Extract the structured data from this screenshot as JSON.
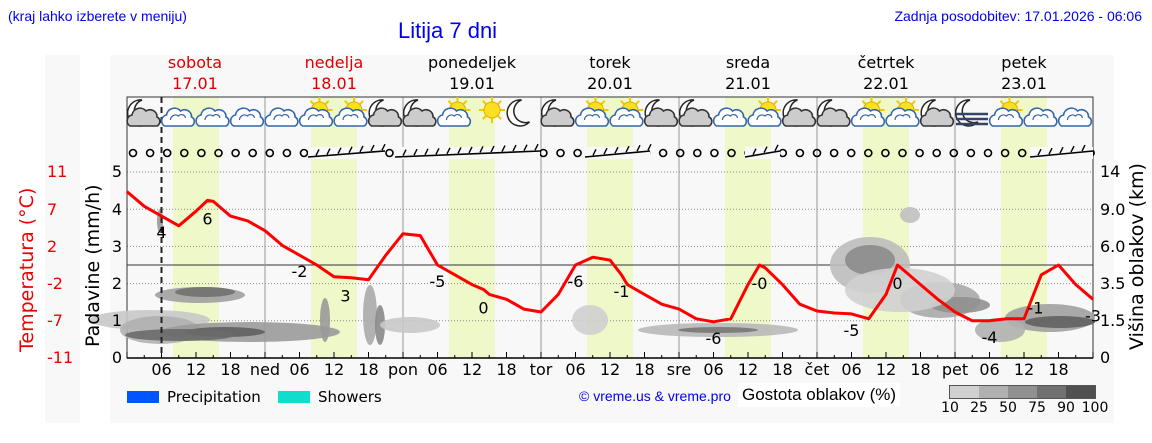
{
  "header": {
    "hint": "(kraj lahko izberete v meniju)",
    "title": "Litija 7 dni",
    "updated": "Zadnja posodobitev: 17.01.2026 - 06:06"
  },
  "days": [
    {
      "name": "sobota",
      "date": "17.01",
      "color": "#dd0000"
    },
    {
      "name": "nedelja",
      "date": "18.01",
      "color": "#dd0000"
    },
    {
      "name": "ponedeljek",
      "date": "19.01",
      "color": "#000000"
    },
    {
      "name": "torek",
      "date": "20.01",
      "color": "#000000"
    },
    {
      "name": "sreda",
      "date": "21.01",
      "color": "#000000"
    },
    {
      "name": "četrtek",
      "date": "22.01",
      "color": "#000000"
    },
    {
      "name": "petek",
      "date": "23.01",
      "color": "#000000"
    }
  ],
  "axes": {
    "temp_label": "Temperatura (°C)",
    "precip_label": "Padavine (mm/h)",
    "cloud_height_label": "Višina oblakov (km)",
    "temp_ticks": [
      "11",
      "7",
      "2",
      "-2",
      "-7",
      "-11"
    ],
    "precip_ticks": [
      "5",
      "4",
      "3",
      "2",
      "1",
      "0"
    ],
    "cloud_ticks": [
      "14",
      "9.0",
      "6.0",
      "3.5",
      "1.5",
      "0"
    ]
  },
  "x_labels": [
    "06",
    "12",
    "18",
    "ned",
    "06",
    "12",
    "18",
    "pon",
    "06",
    "12",
    "18",
    "tor",
    "06",
    "12",
    "18",
    "sre",
    "06",
    "12",
    "18",
    "čet",
    "06",
    "12",
    "18",
    "pet",
    "06",
    "12",
    "18"
  ],
  "legend": {
    "precipitation": "Precipitation",
    "showers": "Showers",
    "precip_color": "#0055ff",
    "showers_color": "#11ddcc",
    "copyright": "© vreme.us & vreme.pro",
    "cloud_density_label": "Gostota oblakov (%)",
    "cloud_density_ticks": [
      "10",
      "25",
      "50",
      "75",
      "90",
      "100"
    ],
    "cloud_density_colors": [
      "#d0d0d0",
      "#b0b0b0",
      "#909090",
      "#707070",
      "#505050"
    ]
  },
  "weather_icons": [
    "moon-cloud",
    "cloud",
    "cloud",
    "cloud",
    "cloud",
    "sun-cloud",
    "sun-cloud",
    "moon-cloud",
    "moon-cloud",
    "sun-cloud",
    "sun",
    "moon",
    "moon-cloud",
    "sun-cloud",
    "sun-cloud",
    "moon-cloud",
    "moon-cloud",
    "cloud",
    "sun-cloud",
    "moon-cloud",
    "moon-cloud",
    "sun-cloud",
    "sun-cloud",
    "moon-cloud",
    "moon-fog",
    "sun-cloud",
    "cloud",
    "cloud"
  ],
  "chart_data": {
    "type": "line",
    "title": "Litija 7 dni",
    "xlabel": "",
    "ylabel": "Temperatura (°C)",
    "x_range_hours": [
      0,
      168
    ],
    "series": [
      {
        "name": "Temperatura (°C)",
        "color": "#ff0000",
        "x_hours": [
          0,
          3,
          6,
          9,
          12,
          14,
          15,
          18,
          21,
          24,
          27,
          30,
          33,
          36,
          39,
          42,
          45,
          48,
          51,
          54,
          57,
          60,
          62,
          63,
          66,
          69,
          72,
          75,
          78,
          81,
          84,
          86,
          87,
          90,
          93,
          96,
          99,
          102,
          105,
          108,
          110,
          111,
          114,
          117,
          120,
          123,
          126,
          129,
          132,
          134,
          135,
          138,
          141,
          144,
          147,
          150,
          153,
          156,
          158,
          159,
          162,
          165,
          168
        ],
        "values": [
          7.5,
          6,
          5,
          4,
          5.5,
          6.6,
          6.5,
          5,
          4.5,
          3.5,
          2,
          1,
          0,
          -1.2,
          -1.3,
          -1.5,
          1,
          3.2,
          3,
          0,
          -1,
          -2,
          -2.5,
          -3,
          -3.5,
          -4.5,
          -4.8,
          -3,
          0,
          0.8,
          0.5,
          -1,
          -2,
          -3,
          -4,
          -4.5,
          -5.5,
          -5.8,
          -5.5,
          -2,
          0,
          -0.3,
          -2,
          -4,
          -4.7,
          -4.9,
          -5,
          -5.5,
          -3,
          0,
          -0.5,
          -2,
          -3.5,
          -4.8,
          -5.7,
          -5.7,
          -5.5,
          -5.5,
          -2.5,
          -1,
          0,
          -2,
          -3.5
        ]
      },
      {
        "name": "Padavine (mm/h)",
        "color": "#0055ff",
        "values": []
      }
    ],
    "annotations": [
      {
        "text": "4",
        "hour": 6
      },
      {
        "text": "6",
        "hour": 14
      },
      {
        "text": "-2",
        "hour": 30
      },
      {
        "text": "3",
        "hour": 38
      },
      {
        "text": "-5",
        "hour": 54
      },
      {
        "text": "0",
        "hour": 62
      },
      {
        "text": "-6",
        "hour": 78
      },
      {
        "text": "-1",
        "hour": 86
      },
      {
        "text": "-6",
        "hour": 102
      },
      {
        "text": "-0",
        "hour": 110
      },
      {
        "text": "-5",
        "hour": 126
      },
      {
        "text": "0",
        "hour": 134
      },
      {
        "text": "-4",
        "hour": 150
      },
      {
        "text": "-1",
        "hour": 158
      },
      {
        "text": "-3",
        "hour": 168
      }
    ],
    "temp_ylim": [
      -11,
      11
    ],
    "precip_ylim": [
      0,
      5
    ],
    "cloud_height_ticks_km": [
      0,
      1.5,
      3.5,
      6.0,
      9.0,
      14
    ],
    "grid": true,
    "daylight_bands_hours": [
      [
        8,
        16
      ],
      [
        32,
        40
      ],
      [
        56,
        64
      ],
      [
        80,
        88
      ],
      [
        104,
        112
      ],
      [
        128,
        136
      ],
      [
        152,
        160
      ]
    ],
    "now_marker_hour": 6
  }
}
